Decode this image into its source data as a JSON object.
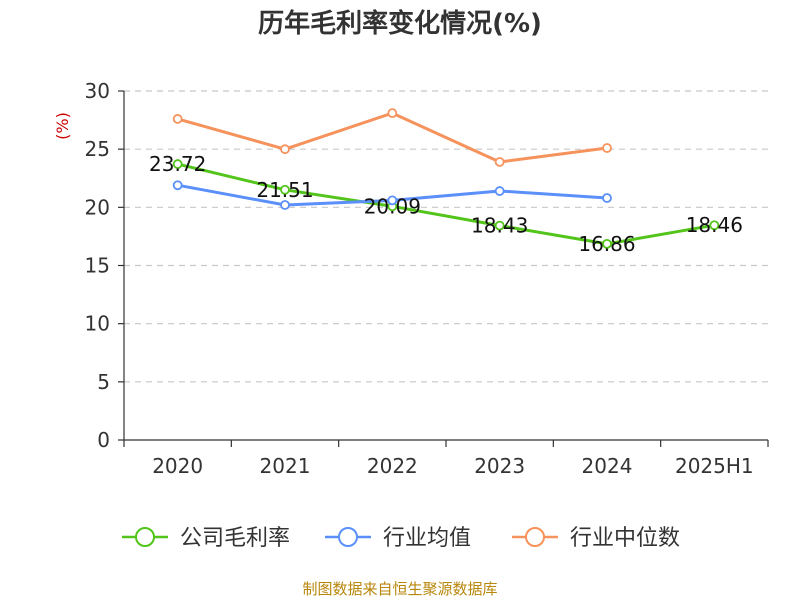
{
  "chart_data": {
    "type": "line",
    "title": "历年毛利率变化情况(%)",
    "ylabel": "(%)",
    "xlabel": "",
    "ylim": [
      0,
      30
    ],
    "yticks": [
      0,
      5,
      10,
      15,
      20,
      25,
      30
    ],
    "categories": [
      "2020",
      "2021",
      "2022",
      "2023",
      "2024",
      "2025H1"
    ],
    "grid": true,
    "legend_position": "bottom",
    "series": [
      {
        "name": "公司毛利率",
        "color": "#52c41a",
        "values": [
          23.72,
          21.51,
          20.09,
          18.43,
          16.86,
          18.46
        ],
        "labels": [
          "23.72",
          "21.51",
          "20.09",
          "18.43",
          "16.86",
          "18.46"
        ]
      },
      {
        "name": "行业均值",
        "color": "#5b8ff9",
        "values": [
          21.9,
          20.2,
          20.6,
          21.4,
          20.8,
          null
        ]
      },
      {
        "name": "行业中位数",
        "color": "#f6925c",
        "values": [
          27.6,
          25.0,
          28.1,
          23.9,
          25.1,
          null
        ]
      }
    ]
  },
  "source": "制图数据来自恒生聚源数据库"
}
